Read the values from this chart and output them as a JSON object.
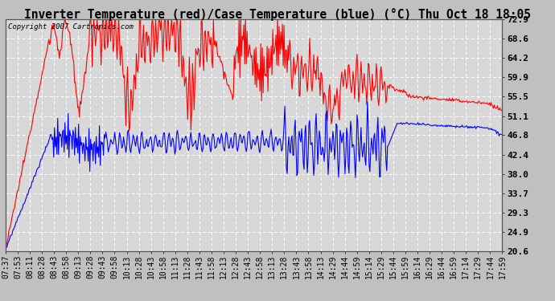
{
  "title": "Inverter Temperature (red)/Case Temperature (blue) (°C) Thu Oct 18 18:05",
  "copyright": "Copyright 2007 Cartronics.com",
  "background_color": "#c0c0c0",
  "plot_bg_color": "#d8d8d8",
  "grid_color": "#ffffff",
  "y_ticks": [
    20.6,
    24.9,
    29.3,
    33.7,
    38.0,
    42.4,
    46.8,
    51.1,
    55.5,
    59.9,
    64.2,
    68.6,
    72.9
  ],
  "ylim": [
    20.6,
    72.9
  ],
  "x_labels": [
    "07:37",
    "07:53",
    "08:11",
    "08:28",
    "08:43",
    "08:58",
    "09:13",
    "09:28",
    "09:43",
    "09:58",
    "10:13",
    "10:28",
    "10:43",
    "10:58",
    "11:13",
    "11:28",
    "11:43",
    "11:58",
    "12:13",
    "12:28",
    "12:43",
    "12:58",
    "13:13",
    "13:28",
    "13:43",
    "13:58",
    "14:13",
    "14:29",
    "14:44",
    "14:59",
    "15:14",
    "15:29",
    "15:44",
    "15:59",
    "16:14",
    "16:29",
    "16:44",
    "16:59",
    "17:14",
    "17:29",
    "17:44",
    "17:59"
  ],
  "title_fontsize": 10.5,
  "axis_fontsize": 7,
  "copyright_fontsize": 6.5
}
